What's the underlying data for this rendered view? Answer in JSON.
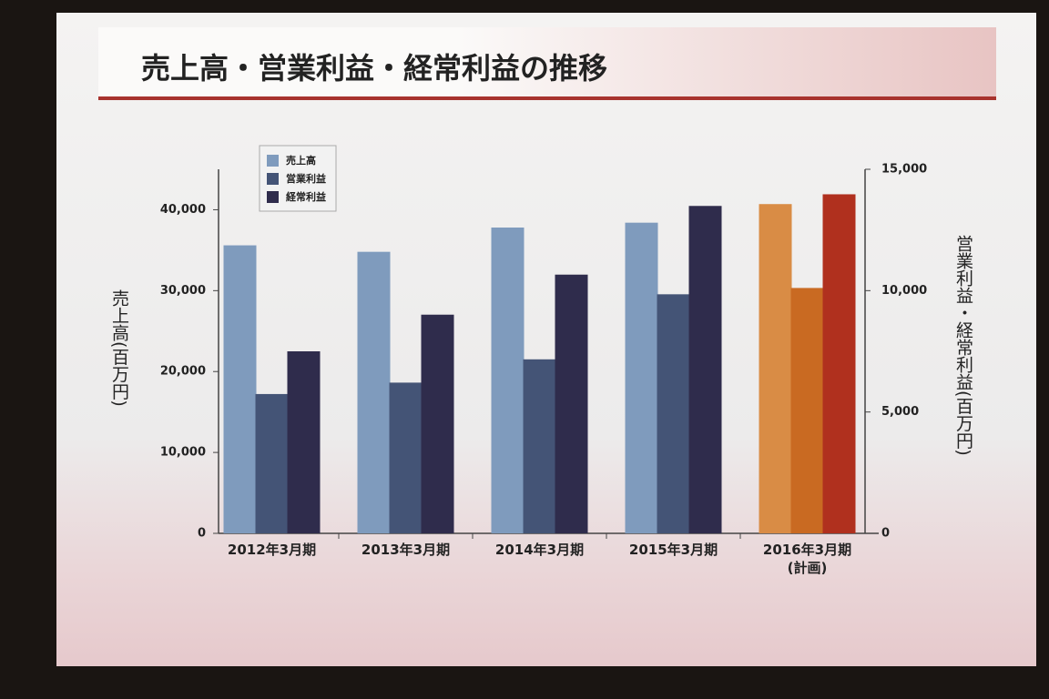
{
  "chart_data": {
    "type": "bar",
    "title": "売上高・営業利益・経常利益の推移",
    "y_label": "売上高(百万円)",
    "y2_label": "営業利益・経常利益(百万円)",
    "categories": [
      "2012年3月期",
      "2013年3月期",
      "2014年3月期",
      "2015年3月期",
      "2016年3月期\n(計画)"
    ],
    "series": [
      {
        "name": "売上高",
        "color": "#7f9bbd",
        "colors": [
          "#7f9bbd",
          "#7f9bbd",
          "#7f9bbd",
          "#7f9bbd",
          "#d98c45"
        ],
        "values": [
          35600,
          34800,
          37800,
          38400,
          40700
        ]
      },
      {
        "name": "営業利益",
        "color": "#445476",
        "axis": "y2",
        "colors": [
          "#445476",
          "#445476",
          "#445476",
          "#445476",
          "#c96a22"
        ],
        "values": [
          5740,
          6210,
          7170,
          9850,
          10110
        ]
      },
      {
        "name": "経常利益",
        "color": "#2f2c4c",
        "axis": "y2",
        "colors": [
          "#2f2c4c",
          "#2f2c4c",
          "#2f2c4c",
          "#2f2c4c",
          "#b0301e"
        ],
        "values": [
          7500,
          9010,
          10660,
          13490,
          13970
        ]
      }
    ],
    "ylim": [
      0,
      45000
    ],
    "yticks": [
      0,
      {
        "value": 10000,
        "label": "10,000"
      },
      {
        "value": 20000,
        "label": "20,000"
      },
      {
        "value": 30000,
        "label": "30,000"
      },
      {
        "value": 40000,
        "label": "40,000"
      }
    ],
    "y2lim": [
      0,
      15000
    ],
    "y2ticks": [
      0,
      {
        "value": 5000,
        "label": "5,000"
      },
      {
        "value": 10000,
        "label": "10,000"
      },
      {
        "value": 15000,
        "label": "15,000"
      }
    ],
    "legend": "top-left"
  }
}
